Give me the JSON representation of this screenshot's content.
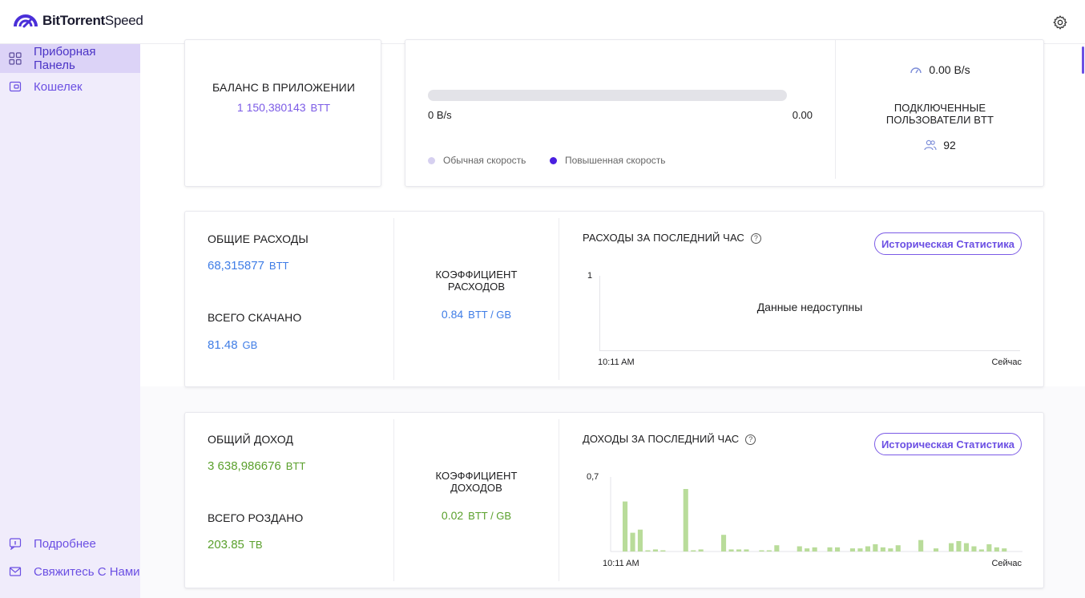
{
  "app": {
    "logo_bold": "BitTorrent",
    "logo_light": "Speed"
  },
  "sidebar": {
    "items": [
      {
        "label": "Приборная Панель",
        "icon": "dashboard-icon",
        "active": true
      },
      {
        "label": "Кошелек",
        "icon": "wallet-icon",
        "active": false
      }
    ],
    "footer": [
      {
        "label": "Подробнее",
        "icon": "info-icon"
      },
      {
        "label": "Свяжитесь С Нами",
        "icon": "mail-icon"
      }
    ]
  },
  "balance": {
    "title": "БАЛАНС В ПРИЛОЖЕНИИ",
    "value": "1 150,380143",
    "unit": "BTT"
  },
  "speed": {
    "left_value": "0 B/s",
    "right_value": "0.00",
    "progress": 0,
    "legend_normal": "Обычная скорость",
    "legend_boost": "Повышенная скорость",
    "normal_color": "#d6d0f0",
    "boost_color": "#4a1fe0"
  },
  "connections": {
    "speed_value": "0.00 B/s",
    "title_line1": "ПОДКЛЮЧЕННЫЕ",
    "title_line2": "ПОЛЬЗОВАТЕЛИ BTT",
    "users": "92"
  },
  "spending": {
    "total_title": "ОБЩИЕ РАСХОДЫ",
    "total_value": "68,315877",
    "total_unit": "BTT",
    "downloaded_title": "ВСЕГО СКАЧАНО",
    "downloaded_value": "81.48",
    "downloaded_unit": "GB",
    "ratio_line1": "КОЭФФИЦИЕНТ",
    "ratio_line2": "РАСХОДОВ",
    "ratio_value": "0.84",
    "ratio_unit": "BTT / GB",
    "chart_title": "РАСХОДЫ ЗА ПОСЛЕДНИЙ ЧАС",
    "history_button": "Историческая Статистика",
    "no_data": "Данные недоступны",
    "y_max": "1",
    "x_start": "10:11 AM",
    "x_end": "Сейчас"
  },
  "earnings": {
    "total_title": "ОБЩИЙ ДОХОД",
    "total_value": "3 638,986676",
    "total_unit": "BTT",
    "seeded_title": "ВСЕГО РОЗДАНО",
    "seeded_value": "203.85",
    "seeded_unit": "TB",
    "ratio_line1": "КОЭФФИЦИЕНТ",
    "ratio_line2": "ДОХОДОВ",
    "ratio_value": "0.02",
    "ratio_unit": "BTT / GB",
    "chart_title": "ДОХОДЫ ЗА ПОСЛЕДНИЙ ЧАС",
    "history_button": "Историческая Статистика",
    "y_max": "0,7",
    "x_start": "10:11 AM",
    "x_end": "Сейчас",
    "bar_color": "#b9dc9a"
  },
  "chart_data": {
    "type": "bar",
    "title": "ДОХОДЫ ЗА ПОСЛЕДНИЙ ЧАС",
    "ylim": [
      0,
      0.7
    ],
    "x_range": [
      "10:11 AM",
      "Сейчас"
    ],
    "values": [
      0.48,
      0.18,
      0.21,
      0.01,
      0.02,
      0.01,
      0.0,
      0.0,
      0.6,
      0.01,
      0.02,
      0.0,
      0.0,
      0.16,
      0.02,
      0.02,
      0.02,
      0.0,
      0.01,
      0.01,
      0.06,
      0.0,
      0.0,
      0.05,
      0.03,
      0.04,
      0.0,
      0.04,
      0.04,
      0.0,
      0.03,
      0.03,
      0.05,
      0.07,
      0.04,
      0.03,
      0.06,
      0.0,
      0.0,
      0.11,
      0.0,
      0.03,
      0.0,
      0.08,
      0.1,
      0.08,
      0.05,
      0.02,
      0.07,
      0.04,
      0.03,
      0.0
    ]
  }
}
